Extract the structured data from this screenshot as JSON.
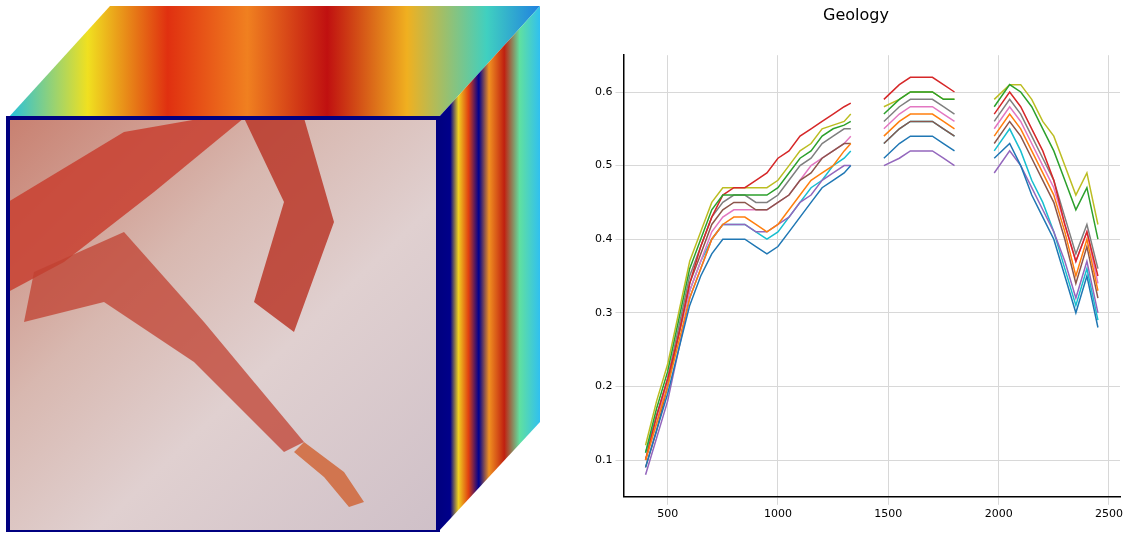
{
  "chart_data": {
    "type": "line",
    "title": "Geology",
    "x": [
      400,
      450,
      500,
      550,
      600,
      650,
      700,
      750,
      800,
      850,
      900,
      950,
      1000,
      1050,
      1100,
      1150,
      1200,
      1250,
      1300,
      1330,
      1400,
      1480,
      1550,
      1600,
      1650,
      1700,
      1750,
      1800,
      1880,
      1980,
      2050,
      2100,
      2150,
      2200,
      2250,
      2300,
      2350,
      2400,
      2450
    ],
    "series": [
      {
        "color": "#1f77b4",
        "values": [
          0.09,
          0.14,
          0.19,
          0.25,
          0.31,
          0.35,
          0.38,
          0.4,
          0.4,
          0.4,
          0.39,
          0.38,
          0.39,
          0.41,
          0.43,
          0.45,
          0.47,
          0.48,
          0.49,
          0.5,
          null,
          0.51,
          0.53,
          0.54,
          0.54,
          0.54,
          0.53,
          0.52,
          null,
          0.51,
          0.53,
          0.5,
          0.46,
          0.43,
          0.4,
          0.35,
          0.3,
          0.35,
          0.28
        ]
      },
      {
        "color": "#ff7f0e",
        "values": [
          0.1,
          0.15,
          0.2,
          0.26,
          0.32,
          0.36,
          0.4,
          0.42,
          0.43,
          0.43,
          0.42,
          0.41,
          0.42,
          0.44,
          0.46,
          0.48,
          0.49,
          0.5,
          0.52,
          0.53,
          null,
          0.54,
          0.56,
          0.57,
          0.57,
          0.57,
          0.56,
          0.55,
          null,
          0.54,
          0.57,
          0.55,
          0.52,
          0.49,
          0.46,
          0.41,
          0.35,
          0.4,
          0.33
        ]
      },
      {
        "color": "#2ca02c",
        "values": [
          0.11,
          0.17,
          0.22,
          0.29,
          0.36,
          0.4,
          0.44,
          0.46,
          0.46,
          0.46,
          0.46,
          0.46,
          0.47,
          0.49,
          0.51,
          0.52,
          0.54,
          0.55,
          0.555,
          0.56,
          null,
          0.57,
          0.59,
          0.6,
          0.6,
          0.6,
          0.59,
          0.59,
          null,
          0.58,
          0.61,
          0.6,
          0.58,
          0.55,
          0.52,
          0.48,
          0.44,
          0.47,
          0.4
        ]
      },
      {
        "color": "#d62728",
        "values": [
          0.1,
          0.16,
          0.21,
          0.27,
          0.34,
          0.39,
          0.43,
          0.46,
          0.47,
          0.47,
          0.48,
          0.49,
          0.51,
          0.52,
          0.54,
          0.55,
          0.56,
          0.57,
          0.58,
          0.585,
          null,
          0.59,
          0.61,
          0.62,
          0.62,
          0.62,
          0.61,
          0.6,
          null,
          0.57,
          0.6,
          0.58,
          0.55,
          0.52,
          0.48,
          0.42,
          0.37,
          0.41,
          0.35
        ]
      },
      {
        "color": "#9467bd",
        "values": [
          0.08,
          0.13,
          0.18,
          0.25,
          0.32,
          0.36,
          0.4,
          0.42,
          0.42,
          0.42,
          0.41,
          0.41,
          0.42,
          0.43,
          0.45,
          0.46,
          0.48,
          0.49,
          0.5,
          0.5,
          null,
          0.5,
          0.51,
          0.52,
          0.52,
          0.52,
          0.51,
          0.5,
          null,
          0.49,
          0.52,
          0.5,
          0.47,
          0.44,
          0.41,
          0.37,
          0.32,
          0.37,
          0.3
        ]
      },
      {
        "color": "#8c564b",
        "values": [
          0.09,
          0.14,
          0.2,
          0.27,
          0.34,
          0.38,
          0.42,
          0.44,
          0.45,
          0.45,
          0.44,
          0.44,
          0.45,
          0.46,
          0.48,
          0.49,
          0.51,
          0.52,
          0.53,
          0.53,
          null,
          0.53,
          0.55,
          0.56,
          0.56,
          0.56,
          0.55,
          0.54,
          null,
          0.53,
          0.56,
          0.54,
          0.51,
          0.48,
          0.45,
          0.4,
          0.34,
          0.39,
          0.32
        ]
      },
      {
        "color": "#e377c2",
        "values": [
          0.1,
          0.15,
          0.21,
          0.27,
          0.33,
          0.37,
          0.41,
          0.43,
          0.44,
          0.44,
          0.44,
          0.44,
          0.45,
          0.46,
          0.48,
          0.5,
          0.51,
          0.52,
          0.53,
          0.54,
          null,
          0.55,
          0.57,
          0.58,
          0.58,
          0.58,
          0.57,
          0.56,
          null,
          0.55,
          0.58,
          0.56,
          0.53,
          0.5,
          0.47,
          0.42,
          0.37,
          0.41,
          0.34
        ]
      },
      {
        "color": "#7f7f7f",
        "values": [
          0.1,
          0.16,
          0.21,
          0.28,
          0.35,
          0.39,
          0.43,
          0.45,
          0.46,
          0.46,
          0.45,
          0.45,
          0.46,
          0.48,
          0.5,
          0.51,
          0.53,
          0.54,
          0.55,
          0.55,
          null,
          0.56,
          0.58,
          0.59,
          0.59,
          0.59,
          0.58,
          0.57,
          null,
          0.56,
          0.59,
          0.57,
          0.54,
          0.51,
          0.48,
          0.43,
          0.38,
          0.42,
          0.36
        ]
      },
      {
        "color": "#bcbd22",
        "values": [
          0.12,
          0.18,
          0.23,
          0.3,
          0.37,
          0.41,
          0.45,
          0.47,
          0.47,
          0.47,
          0.47,
          0.47,
          0.48,
          0.5,
          0.52,
          0.53,
          0.55,
          0.555,
          0.56,
          0.57,
          null,
          0.58,
          0.59,
          0.6,
          0.6,
          0.6,
          0.59,
          0.59,
          null,
          0.59,
          0.61,
          0.61,
          0.59,
          0.56,
          0.54,
          0.5,
          0.46,
          0.49,
          0.42
        ]
      },
      {
        "color": "#17becf",
        "values": [
          0.11,
          0.16,
          0.21,
          0.27,
          0.33,
          0.37,
          0.4,
          0.42,
          0.42,
          0.42,
          0.41,
          0.4,
          0.41,
          0.43,
          0.45,
          0.47,
          0.48,
          0.5,
          0.51,
          0.52,
          null,
          0.53,
          0.55,
          0.56,
          0.56,
          0.56,
          0.55,
          0.54,
          null,
          0.52,
          0.55,
          0.52,
          0.48,
          0.45,
          0.41,
          0.36,
          0.31,
          0.36,
          0.29
        ]
      }
    ],
    "xlim": [
      300,
      2550
    ],
    "xticks": [
      500,
      1000,
      1500,
      2000,
      2500
    ],
    "ylim": [
      0.05,
      0.65
    ],
    "yticks": [
      0.1,
      0.2,
      0.3,
      0.4,
      0.5,
      0.6
    ],
    "grid": true
  }
}
